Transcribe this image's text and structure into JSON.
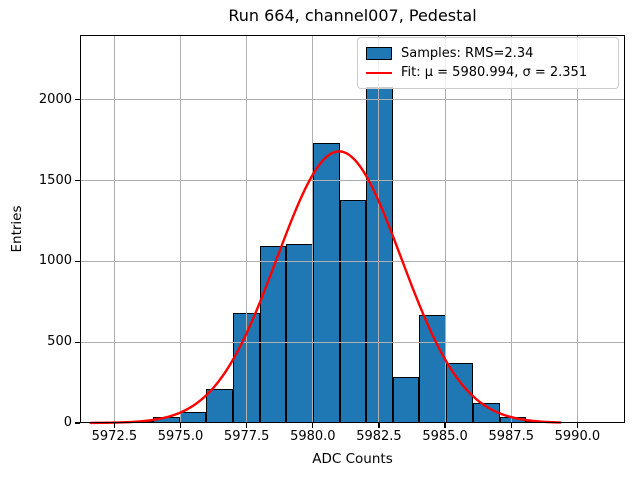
{
  "figure": {
    "title": "Run 664, channel007, Pedestal",
    "xlabel": "ADC Counts",
    "ylabel": "Entries"
  },
  "legend": {
    "entries": [
      {
        "label": "Samples: RMS=2.34",
        "marker": "patch",
        "color": "#1f77b4",
        "edge_color": "#000000"
      },
      {
        "label": "Fit: μ = 5980.994, σ = 2.351",
        "marker": "line",
        "color": "#ff0000"
      }
    ],
    "position": "upper right"
  },
  "chart_data": {
    "type": "bar",
    "subtype": "histogram-with-fit",
    "title": "Run 664, channel007, Pedestal",
    "xlabel": "ADC Counts",
    "ylabel": "Entries",
    "bin_edges": [
      5972.95,
      5973.96,
      5974.97,
      5975.97,
      5976.98,
      5977.99,
      5979.0,
      5980.0,
      5981.01,
      5982.02,
      5983.03,
      5984.03,
      5985.04,
      5986.05,
      5987.06,
      5988.06,
      5989.07
    ],
    "counts": [
      15,
      35,
      70,
      210,
      680,
      1095,
      1110,
      1730,
      1380,
      2080,
      285,
      665,
      370,
      125,
      40,
      15
    ],
    "bar_color": "#1f77b4",
    "bar_edge_color": "#000000",
    "grid": true,
    "grid_color": "#b0b0b0",
    "xlim": [
      5971.2,
      5991.8
    ],
    "ylim": [
      0,
      2400
    ],
    "xticks": [
      {
        "label": "5972.5",
        "value": 5972.5
      },
      {
        "label": "5975.0",
        "value": 5975.0
      },
      {
        "label": "5977.5",
        "value": 5977.5
      },
      {
        "label": "5980.0",
        "value": 5980.0
      },
      {
        "label": "5982.5",
        "value": 5982.5
      },
      {
        "label": "5985.0",
        "value": 5985.0
      },
      {
        "label": "5987.5",
        "value": 5987.5
      },
      {
        "label": "5990.0",
        "value": 5990.0
      }
    ],
    "yticks": [
      {
        "label": "0",
        "value": 0
      },
      {
        "label": "500",
        "value": 500
      },
      {
        "label": "1000",
        "value": 1000
      },
      {
        "label": "1500",
        "value": 1500
      },
      {
        "label": "2000",
        "value": 2000
      }
    ],
    "fit_curve": {
      "type": "gaussian",
      "mu": 5980.994,
      "sigma": 2.351,
      "amplitude": 1680,
      "color": "#ff0000",
      "x_range": [
        5971.6,
        5989.35
      ]
    },
    "stats": {
      "rms": 2.34,
      "fit_mu": 5980.994,
      "fit_sigma": 2.351
    }
  }
}
